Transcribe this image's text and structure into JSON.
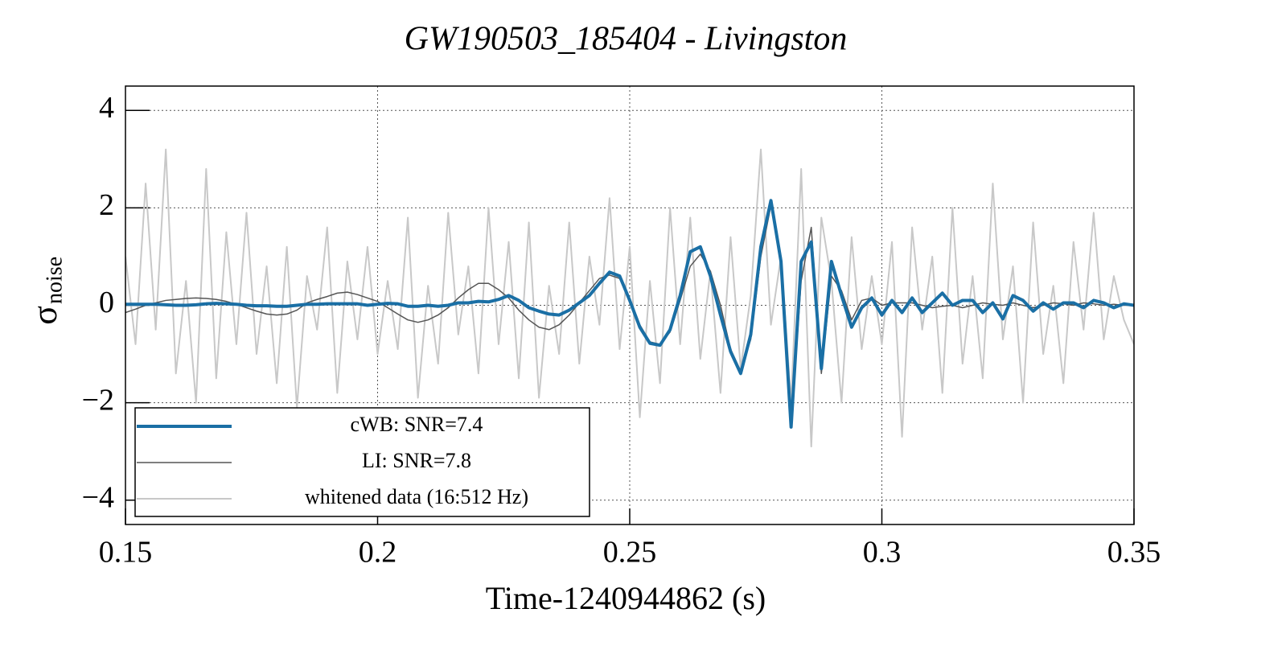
{
  "chart_data": {
    "type": "line",
    "title": "GW190503_185404 - Livingston",
    "x_label": "Time-1240944862 (s)",
    "y_label": "σ",
    "y_label_subscript": "noise",
    "x": [
      0.15,
      0.152,
      0.154,
      0.156,
      0.158,
      0.16,
      0.162,
      0.164,
      0.166,
      0.168,
      0.17,
      0.172,
      0.174,
      0.176,
      0.178,
      0.18,
      0.182,
      0.184,
      0.186,
      0.188,
      0.19,
      0.192,
      0.194,
      0.196,
      0.198,
      0.2,
      0.202,
      0.204,
      0.206,
      0.208,
      0.21,
      0.212,
      0.214,
      0.216,
      0.218,
      0.22,
      0.222,
      0.224,
      0.226,
      0.228,
      0.23,
      0.232,
      0.234,
      0.236,
      0.238,
      0.24,
      0.242,
      0.244,
      0.246,
      0.248,
      0.25,
      0.252,
      0.254,
      0.256,
      0.258,
      0.26,
      0.262,
      0.264,
      0.266,
      0.268,
      0.27,
      0.272,
      0.274,
      0.276,
      0.278,
      0.28,
      0.282,
      0.284,
      0.286,
      0.288,
      0.29,
      0.292,
      0.294,
      0.296,
      0.298,
      0.3,
      0.302,
      0.304,
      0.306,
      0.308,
      0.31,
      0.312,
      0.314,
      0.316,
      0.318,
      0.32,
      0.322,
      0.324,
      0.326,
      0.328,
      0.33,
      0.332,
      0.334,
      0.336,
      0.338,
      0.34,
      0.342,
      0.344,
      0.346,
      0.348,
      0.35
    ],
    "series": [
      {
        "name": "whitened data (16:512 Hz)",
        "color": "#c8c8c8",
        "width": 2,
        "values": [
          1.0,
          -0.8,
          2.5,
          -0.5,
          3.2,
          -1.4,
          0.5,
          -2.0,
          2.8,
          -1.5,
          1.5,
          -0.8,
          1.9,
          -1.0,
          0.8,
          -1.6,
          1.2,
          -2.1,
          0.6,
          -0.5,
          1.6,
          -1.8,
          0.9,
          -0.7,
          1.2,
          -1.0,
          0.5,
          -0.9,
          1.8,
          -1.9,
          0.4,
          -1.2,
          1.9,
          -0.6,
          0.8,
          -1.4,
          2.0,
          -0.8,
          1.3,
          -1.5,
          1.7,
          -1.9,
          0.4,
          -1.0,
          1.7,
          -1.2,
          1.0,
          -0.4,
          2.2,
          -0.9,
          1.2,
          -2.3,
          0.5,
          -1.6,
          2.0,
          -0.8,
          1.8,
          -1.1,
          0.7,
          -1.8,
          1.4,
          -1.3,
          0.2,
          3.2,
          -0.4,
          1.0,
          -2.0,
          2.8,
          -2.9,
          1.8,
          0.5,
          -2.0,
          1.4,
          -0.9,
          0.6,
          -0.8,
          1.3,
          -2.7,
          1.6,
          -0.5,
          1.0,
          -1.8,
          2.0,
          -1.2,
          0.6,
          -1.5,
          2.5,
          -0.7,
          0.8,
          -2.0,
          1.7,
          -1.0,
          0.4,
          -1.6,
          1.3,
          -0.5,
          1.9,
          -0.7,
          0.6,
          -0.3,
          -0.8
        ]
      },
      {
        "name": "LI: SNR=7.8",
        "color": "#555555",
        "width": 1.5,
        "values": [
          -0.15,
          -0.08,
          0.0,
          0.05,
          0.1,
          0.12,
          0.14,
          0.15,
          0.14,
          0.12,
          0.08,
          0.02,
          -0.05,
          -0.12,
          -0.18,
          -0.2,
          -0.18,
          -0.1,
          0.05,
          0.12,
          0.18,
          0.25,
          0.27,
          0.22,
          0.15,
          0.08,
          -0.05,
          -0.18,
          -0.3,
          -0.35,
          -0.3,
          -0.2,
          -0.05,
          0.15,
          0.32,
          0.45,
          0.45,
          0.32,
          0.15,
          -0.1,
          -0.3,
          -0.45,
          -0.5,
          -0.4,
          -0.2,
          0.05,
          0.3,
          0.55,
          0.62,
          0.55,
          0.1,
          -0.4,
          -0.75,
          -0.8,
          -0.55,
          0.1,
          0.8,
          1.05,
          0.7,
          0.0,
          -0.9,
          -1.35,
          -0.7,
          1.0,
          2.05,
          0.9,
          -2.5,
          0.5,
          1.6,
          -1.4,
          0.6,
          0.3,
          -0.3,
          0.1,
          0.15,
          0.0,
          0.05,
          0.05,
          0.05,
          0.0,
          -0.05,
          -0.02,
          0.0,
          -0.05,
          0.0,
          0.05,
          0.02,
          0.0,
          0.05,
          0.0,
          -0.05,
          0.0,
          0.05,
          0.03,
          0.0,
          0.05,
          0.03,
          0.0,
          0.02,
          0.0,
          0.0
        ]
      },
      {
        "name": "cWB: SNR=7.4",
        "color": "#1a6fa5",
        "width": 4,
        "values": [
          0.02,
          0.02,
          0.02,
          0.02,
          0.01,
          0.0,
          0.0,
          0.01,
          0.03,
          0.04,
          0.03,
          0.02,
          0.0,
          -0.01,
          -0.01,
          -0.02,
          -0.02,
          0.0,
          0.02,
          0.02,
          0.03,
          0.03,
          0.03,
          0.03,
          0.0,
          0.02,
          0.04,
          0.03,
          -0.02,
          -0.02,
          0.0,
          -0.02,
          0.0,
          0.05,
          0.05,
          0.08,
          0.07,
          0.12,
          0.2,
          0.1,
          -0.05,
          -0.12,
          -0.18,
          -0.2,
          -0.1,
          0.05,
          0.2,
          0.45,
          0.68,
          0.6,
          0.1,
          -0.45,
          -0.78,
          -0.82,
          -0.5,
          0.2,
          1.1,
          1.2,
          0.6,
          -0.2,
          -0.95,
          -1.4,
          -0.6,
          1.2,
          2.15,
          0.9,
          -2.5,
          0.9,
          1.3,
          -1.3,
          0.9,
          0.2,
          -0.45,
          -0.05,
          0.15,
          -0.2,
          0.1,
          -0.15,
          0.15,
          -0.15,
          0.05,
          0.25,
          0.0,
          0.1,
          0.1,
          -0.15,
          0.05,
          -0.28,
          0.2,
          0.1,
          -0.12,
          0.05,
          -0.08,
          0.05,
          0.05,
          -0.05,
          0.1,
          0.05,
          -0.05,
          0.03,
          0.0
        ]
      }
    ],
    "legend_order": [
      2,
      1,
      0
    ],
    "legend": "lower left",
    "xlim": [
      0.15,
      0.35
    ],
    "xticks": [
      0.15,
      0.2,
      0.25,
      0.3,
      0.35
    ],
    "ylim": [
      -4.5,
      4.5
    ],
    "yticks": [
      {
        "value": -4,
        "label": "−4"
      },
      {
        "value": -2,
        "label": "−2"
      },
      0,
      2,
      4
    ],
    "grid": true
  }
}
